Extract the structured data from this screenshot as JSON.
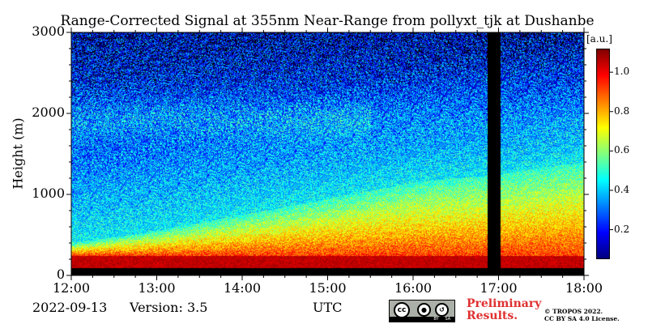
{
  "chart_data": {
    "type": "heatmap",
    "title": "Range-Corrected Signal at 355nm Near-Range from pollyxt_tjk at Dushanbe",
    "xlabel": "UTC",
    "ylabel": "Height (m)",
    "x_range": [
      "12:00",
      "18:00"
    ],
    "y_range": [
      0,
      3000
    ],
    "x_ticks": [
      "12:00",
      "13:00",
      "14:00",
      "15:00",
      "16:00",
      "17:00",
      "18:00"
    ],
    "y_ticks": [
      0,
      1000,
      2000,
      3000
    ],
    "colorbar": {
      "unit": "[a.u.]",
      "range": [
        0.05,
        1.12
      ],
      "ticks": [
        "0.2",
        "0.4",
        "0.6",
        "0.8",
        "1.0"
      ],
      "colormap": "jet"
    },
    "data_gap": {
      "start": "16:52",
      "end": "17:01"
    },
    "layer_top_height_m": [
      {
        "time": "12:00",
        "height": 400
      },
      {
        "time": "13:00",
        "height": 550
      },
      {
        "time": "14:00",
        "height": 750
      },
      {
        "time": "15:00",
        "height": 950
      },
      {
        "time": "16:00",
        "height": 1150
      },
      {
        "time": "17:00",
        "height": 1250
      },
      {
        "time": "18:00",
        "height": 1400
      }
    ]
  },
  "footer": {
    "date": "2022-09-13",
    "version": "Version: 3.5",
    "xlabel_utc": "UTC",
    "preliminary_line1": "Preliminary",
    "preliminary_line2": "Results.",
    "copyright_line1": "© TROPOS 2022.",
    "copyright_line2": "CC BY SA 4.0 License."
  },
  "license_badge": {
    "cc": "cc",
    "by": "BY",
    "sa": "SA"
  }
}
